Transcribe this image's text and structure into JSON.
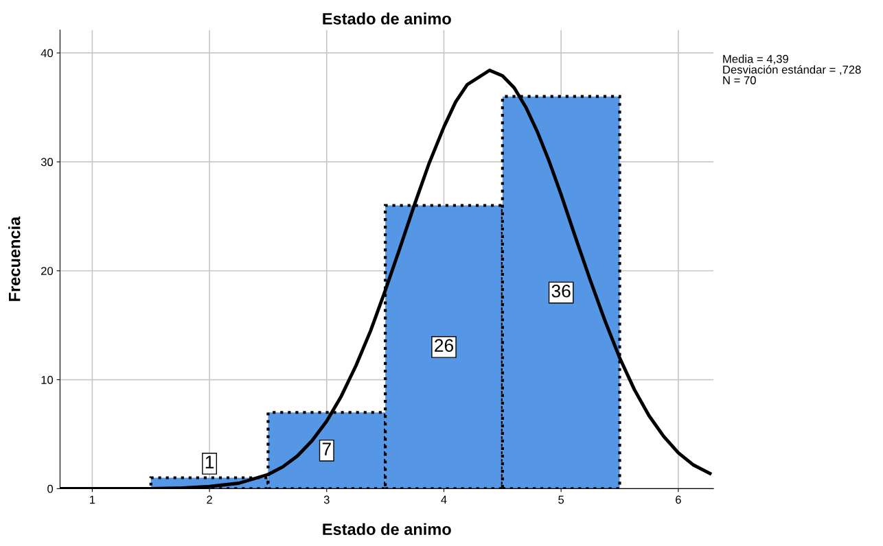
{
  "chart_data": {
    "type": "histogram",
    "title": "Estado de animo",
    "xlabel": "Estado de animo",
    "ylabel": "Frecuencia",
    "bins": [
      1.5,
      2.5,
      3.5,
      4.5,
      5.5
    ],
    "values": [
      1,
      7,
      26,
      36
    ],
    "color": "#5596e5",
    "value_labels": [
      "1",
      "7",
      "26",
      "36"
    ],
    "series": [
      {
        "type": "line",
        "color": "#000000",
        "x": [
          0.725,
          1.0,
          1.5,
          1.75,
          2.0,
          2.25,
          2.5,
          2.625,
          2.75,
          2.875,
          3.0,
          3.125,
          3.25,
          3.375,
          3.5,
          3.625,
          3.75,
          3.875,
          4.0,
          4.1,
          4.2,
          4.39,
          4.5,
          4.6,
          4.7,
          4.8,
          4.9,
          5.0,
          5.125,
          5.25,
          5.375,
          5.5,
          5.625,
          5.75,
          5.875,
          6.0,
          6.125,
          6.27
        ],
        "values": [
          0.0,
          0.0,
          0.0,
          0.05,
          0.2,
          0.5,
          1.3,
          2.0,
          3.0,
          4.4,
          6.2,
          8.5,
          11.3,
          14.5,
          18.2,
          22.1,
          26.1,
          29.9,
          33.2,
          35.5,
          37.1,
          38.4,
          37.9,
          36.8,
          35.0,
          32.7,
          30.0,
          27.0,
          23.0,
          19.1,
          15.4,
          12.0,
          9.1,
          6.7,
          4.8,
          3.3,
          2.2,
          1.4
        ]
      }
    ],
    "xlim": [
      0.725,
      6.3
    ],
    "ylim": [
      0,
      42.1
    ],
    "xticks": [
      1,
      2,
      3,
      4,
      5,
      6
    ],
    "yticks": [
      0,
      10,
      20,
      30,
      40
    ],
    "grid": true,
    "annotations": [
      "Media = 4,39",
      "Desviación estándar = ,728",
      "N = 70"
    ]
  }
}
